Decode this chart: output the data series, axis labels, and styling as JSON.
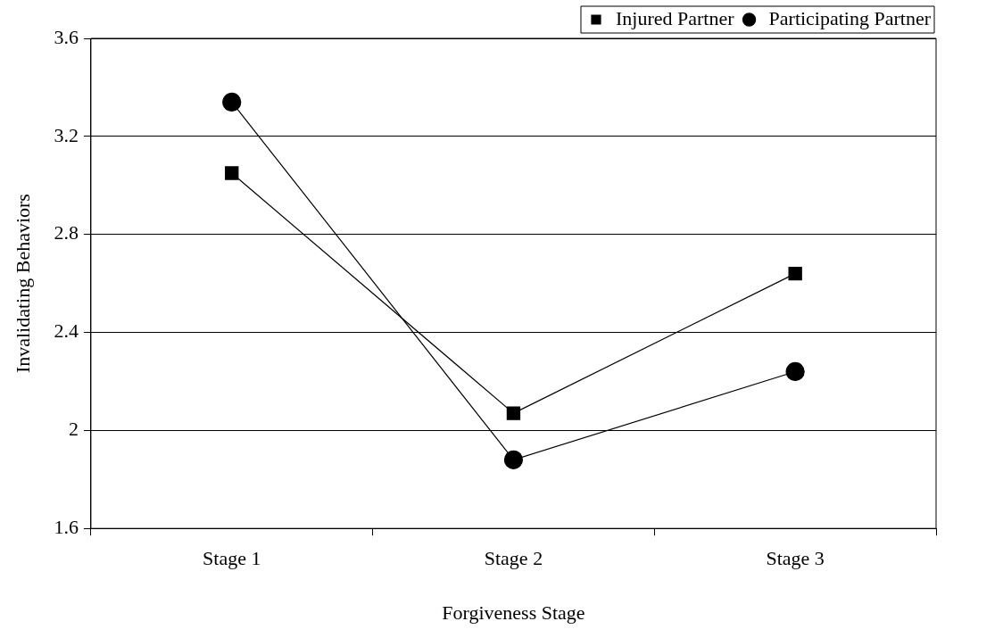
{
  "chart_data": {
    "type": "line",
    "xlabel": "Forgiveness Stage",
    "ylabel": "Invalidating Behaviors",
    "categories": [
      "Stage 1",
      "Stage 2",
      "Stage 3"
    ],
    "series": [
      {
        "name": "Injured Partner",
        "color": "#000000",
        "marker": "square",
        "values": [
          3.05,
          2.07,
          2.64
        ]
      },
      {
        "name": "Participating Partner",
        "color": "#000000",
        "marker": "circle",
        "values": [
          3.34,
          1.88,
          2.24
        ]
      }
    ],
    "ylim": [
      1.6,
      3.6
    ],
    "yticks": [
      1.6,
      2,
      2.4,
      2.8,
      3.2,
      3.6
    ],
    "grid": "y",
    "legend": "top right",
    "line_style": "solid"
  }
}
